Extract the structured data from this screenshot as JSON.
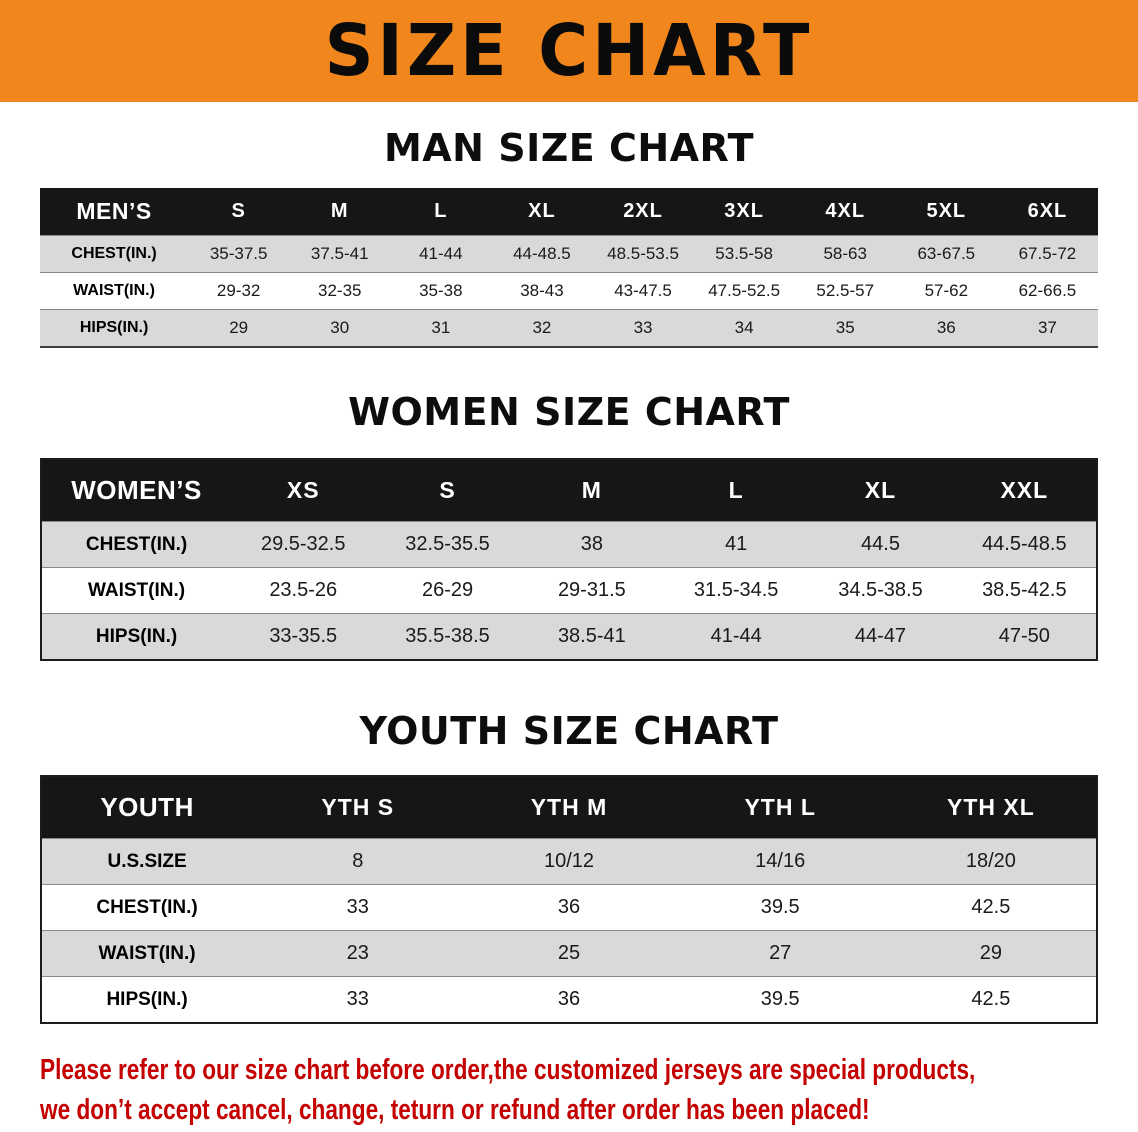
{
  "banner": {
    "title": "SIZE CHART"
  },
  "sections": [
    {
      "heading": "MAN SIZE CHART",
      "table": {
        "header": [
          "MEN’S",
          "S",
          "M",
          "L",
          "XL",
          "2XL",
          "3XL",
          "4XL",
          "5XL",
          "6XL"
        ],
        "rows": [
          {
            "label": "CHEST(IN.)",
            "values": [
              "35-37.5",
              "37.5-41",
              "41-44",
              "44-48.5",
              "48.5-53.5",
              "53.5-58",
              "58-63",
              "63-67.5",
              "67.5-72"
            ]
          },
          {
            "label": "WAIST(IN.)",
            "values": [
              "29-32",
              "32-35",
              "35-38",
              "38-43",
              "43-47.5",
              "47.5-52.5",
              "52.5-57",
              "57-62",
              "62-66.5"
            ]
          },
          {
            "label": "HIPS(IN.)",
            "values": [
              "29",
              "30",
              "31",
              "32",
              "33",
              "34",
              "35",
              "36",
              "37"
            ]
          }
        ]
      }
    },
    {
      "heading": "WOMEN SIZE CHART",
      "table": {
        "header": [
          "WOMEN’S",
          "XS",
          "S",
          "M",
          "L",
          "XL",
          "XXL"
        ],
        "rows": [
          {
            "label": "CHEST(IN.)",
            "values": [
              "29.5-32.5",
              "32.5-35.5",
              "38",
              "41",
              "44.5",
              "44.5-48.5"
            ]
          },
          {
            "label": "WAIST(IN.)",
            "values": [
              "23.5-26",
              "26-29",
              "29-31.5",
              "31.5-34.5",
              "34.5-38.5",
              "38.5-42.5"
            ]
          },
          {
            "label": "HIPS(IN.)",
            "values": [
              "33-35.5",
              "35.5-38.5",
              "38.5-41",
              "41-44",
              "44-47",
              "47-50"
            ]
          }
        ]
      }
    },
    {
      "heading": "YOUTH SIZE CHART",
      "table": {
        "header": [
          "YOUTH",
          "YTH S",
          "YTH M",
          "YTH L",
          "YTH XL"
        ],
        "rows": [
          {
            "label": "U.S.SIZE",
            "values": [
              "8",
              "10/12",
              "14/16",
              "18/20"
            ]
          },
          {
            "label": "CHEST(IN.)",
            "values": [
              "33",
              "36",
              "39.5",
              "42.5"
            ]
          },
          {
            "label": "WAIST(IN.)",
            "values": [
              "23",
              "25",
              "27",
              "29"
            ]
          },
          {
            "label": "HIPS(IN.)",
            "values": [
              "33",
              "36",
              "39.5",
              "42.5"
            ]
          }
        ]
      }
    }
  ],
  "disclaimer": {
    "line1": "Please refer to our size chart before order,the customized jerseys are special products,",
    "line2": "we don’t accept cancel, change, teturn or refund after order has been placed!"
  },
  "theme": {
    "banner_bg": "#F0861C",
    "table_header_bg": "#161616",
    "stripe_bg": "#D9D9D9",
    "disclaimer_color": "#C40000"
  }
}
